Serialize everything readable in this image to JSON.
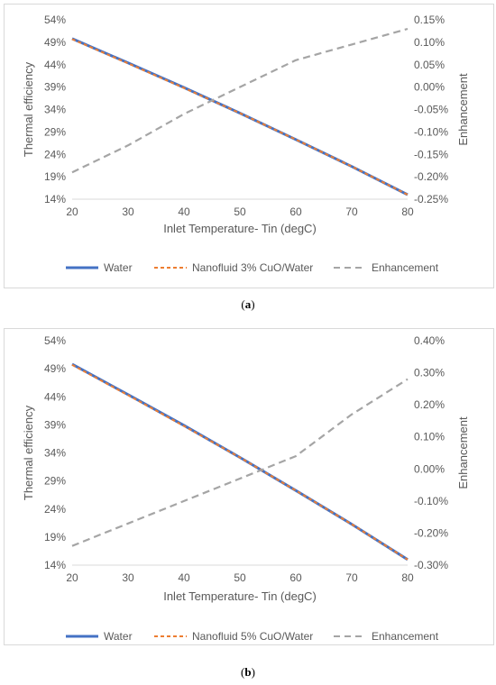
{
  "captions": [
    "a",
    "b"
  ],
  "chart_data": [
    {
      "type": "line",
      "title": "",
      "xlabel": "Inlet Temperature- Tin (degC)",
      "ylabel": "Thermal efficiency",
      "y2label": "Enhancement",
      "x": [
        20,
        30,
        40,
        50,
        60,
        70,
        80
      ],
      "xlim": [
        20,
        80
      ],
      "xticks": [
        "20",
        "30",
        "40",
        "50",
        "60",
        "70",
        "80"
      ],
      "ylim": [
        14,
        54
      ],
      "yticks": [
        "14%",
        "19%",
        "24%",
        "29%",
        "34%",
        "39%",
        "44%",
        "49%",
        "54%"
      ],
      "y2lim": [
        -0.25,
        0.15
      ],
      "y2ticks": [
        "-0.25%",
        "-0.20%",
        "-0.15%",
        "-0.10%",
        "-0.05%",
        "0.00%",
        "0.05%",
        "0.10%",
        "0.15%"
      ],
      "grid": false,
      "legend": "bottom",
      "series": [
        {
          "name": "Water",
          "axis": "left",
          "style": "solid",
          "color": "#4472c4",
          "values": [
            49.8,
            44.4,
            38.9,
            33.2,
            27.3,
            21.3,
            15.0
          ]
        },
        {
          "name": "Nanofluid 3% CuO/Water",
          "axis": "left",
          "style": "dashed",
          "color": "#ed7d31",
          "values": [
            49.7,
            44.3,
            38.8,
            33.2,
            27.3,
            21.3,
            15.0
          ]
        },
        {
          "name": "Enhancement",
          "axis": "right",
          "style": "dashed",
          "color": "#a5a5a5",
          "values": [
            -0.19,
            -0.13,
            -0.06,
            0.0,
            0.06,
            0.095,
            0.13
          ]
        }
      ]
    },
    {
      "type": "line",
      "title": "",
      "xlabel": "Inlet Temperature- Tin (degC)",
      "ylabel": "Thermal efficiency",
      "y2label": "Enhancement",
      "x": [
        20,
        30,
        40,
        50,
        60,
        70,
        80
      ],
      "xlim": [
        20,
        80
      ],
      "xticks": [
        "20",
        "30",
        "40",
        "50",
        "60",
        "70",
        "80"
      ],
      "ylim": [
        14,
        54
      ],
      "yticks": [
        "14%",
        "19%",
        "24%",
        "29%",
        "34%",
        "39%",
        "44%",
        "49%",
        "54%"
      ],
      "y2lim": [
        -0.3,
        0.4
      ],
      "y2ticks": [
        "-0.30%",
        "-0.20%",
        "-0.10%",
        "0.00%",
        "0.10%",
        "0.20%",
        "0.30%",
        "0.40%"
      ],
      "grid": false,
      "legend": "bottom",
      "series": [
        {
          "name": "Water",
          "axis": "left",
          "style": "solid",
          "color": "#4472c4",
          "values": [
            49.8,
            44.4,
            38.9,
            33.2,
            27.3,
            21.3,
            15.0
          ]
        },
        {
          "name": "Nanofluid 5% CuO/Water",
          "axis": "left",
          "style": "dashed",
          "color": "#ed7d31",
          "values": [
            49.7,
            44.3,
            38.8,
            33.2,
            27.3,
            21.3,
            15.0
          ]
        },
        {
          "name": "Enhancement",
          "axis": "right",
          "style": "dashed",
          "color": "#a5a5a5",
          "values": [
            -0.24,
            -0.17,
            -0.1,
            -0.03,
            0.04,
            0.17,
            0.28
          ]
        }
      ]
    }
  ]
}
